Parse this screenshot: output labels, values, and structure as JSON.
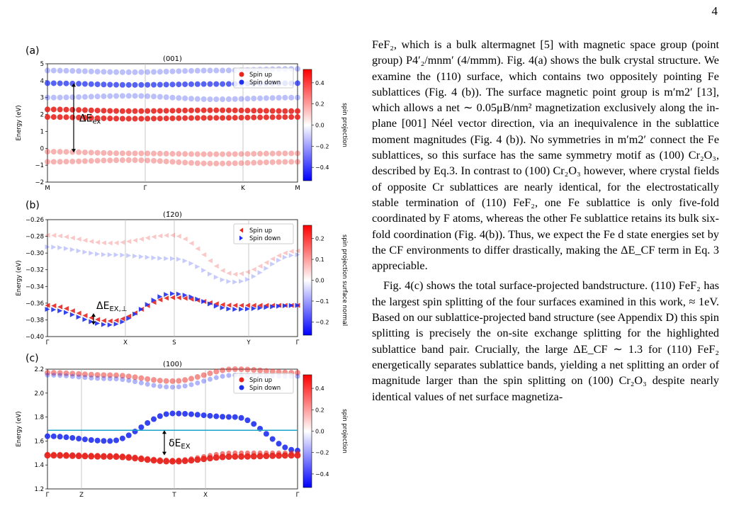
{
  "page_number": "4",
  "figure": {
    "panels": [
      {
        "letter": "(a)",
        "title": "(001)",
        "ylabel": "Energy (eV)",
        "colorbar_label": "spin projection",
        "colorbar_ticks": [
          "0.4",
          "0.2",
          "0.0",
          "−0.2",
          "−0.4"
        ],
        "legend": [
          "Spin up",
          "Spin down"
        ],
        "annotation": "ΔE",
        "annotation_sub": "ex",
        "chart_data": {
          "type": "scatter",
          "x_ticks": [
            "M",
            "Γ",
            "K",
            "M"
          ],
          "y_ticks": [
            "5",
            "4",
            "3",
            "2",
            "1",
            "0",
            "−1",
            "−2"
          ],
          "ylim": [
            -2,
            5
          ],
          "series": [
            {
              "name": "Spin up",
              "color": "#e8251f",
              "bands": [
                [
                  2.3,
                  2.2,
                  2.25,
                  2.2
                ],
                [
                  1.85,
                  1.75,
                  1.8,
                  1.85
                ],
                [
                  -0.2,
                  -0.3,
                  -0.35,
                  -0.3
                ],
                [
                  -0.8,
                  -0.7,
                  -0.9,
                  -0.8
                ]
              ]
            },
            {
              "name": "Spin down",
              "color": "#1f2ff0",
              "bands": [
                [
                  4.6,
                  4.5,
                  4.6,
                  4.7
                ],
                [
                  3.85,
                  3.75,
                  3.8,
                  3.85
                ],
                [
                  3.0,
                  3.1,
                  2.9,
                  3.0
                ]
              ]
            }
          ]
        }
      },
      {
        "letter": "(b)",
        "title": "(1̄20)",
        "ylabel": "Energy (eV)",
        "colorbar_label": "spin projection surface normal",
        "colorbar_ticks": [
          "0.2",
          "0.1",
          "0.0",
          "−0.1",
          "−0.2"
        ],
        "legend": [
          "Spin up",
          "Spin down"
        ],
        "annotation": "ΔE",
        "annotation_sub": "EX,⊥",
        "chart_data": {
          "type": "scatter",
          "x_ticks": [
            "Γ",
            "X",
            "S",
            "Y",
            "Γ"
          ],
          "y_ticks": [
            "−0.26",
            "−0.28",
            "−0.30",
            "−0.32",
            "−0.34",
            "−0.36",
            "−0.38",
            "−0.40"
          ],
          "ylim": [
            -0.4,
            -0.25
          ],
          "series": [
            {
              "name": "Spin up",
              "color": "#e8251f"
            },
            {
              "name": "Spin down",
              "color": "#1f2ff0"
            }
          ]
        }
      },
      {
        "letter": "(c)",
        "title": "(100)",
        "ylabel": "Energy (eV)",
        "colorbar_label": "spin projection",
        "colorbar_ticks": [
          "0.4",
          "0.2",
          "0.0",
          "−0.2",
          "−0.4"
        ],
        "legend": [
          "Spin up",
          "Spin down"
        ],
        "annotation": "δE",
        "annotation_sub": "EX",
        "chart_data": {
          "type": "scatter",
          "x_ticks": [
            "Γ",
            "Z",
            "T",
            "X",
            "Γ"
          ],
          "y_ticks": [
            "2.2",
            "2.0",
            "1.8",
            "1.6",
            "1.4",
            "1.2"
          ],
          "ylim": [
            1.2,
            2.2
          ],
          "fermi_like_line": 1.69,
          "series": [
            {
              "name": "Spin up",
              "color": "#e8251f"
            },
            {
              "name": "Spin down",
              "color": "#1f2ff0"
            }
          ]
        }
      }
    ]
  },
  "text": {
    "p1": "FeF₂, which is a bulk altermagnet [5] with magnetic space group (point group) P4′₂/mnm′ (4/mmm). Fig. 4(a) shows the bulk crystal structure. We examine the (110) surface, which contains two oppositely pointing Fe sublattices (Fig. 4 (b)). The surface magnetic point group is m′m2′ [13], which allows a net ∼ 0.05μB/nm² magnetization exclusively along the in-plane [001] Néel vector direction, via an inequivalence in the sublattice moment magnitudes (Fig. 4 (b)). No symmetries in m′m2′ connect the Fe sublattices, so this surface has the same symmetry motif as (100) Cr₂O₃, described by Eq.3. In contrast to (100) Cr₂O₃ however, where crystal fields of opposite Cr sublattices are nearly identical, for the electrostatically stable termination of (110) FeF₂, one Fe sublattice is only five-fold coordinated by F atoms, whereas the other Fe sublattice retains its bulk six-fold coordination (Fig. 4(b)). Thus, we expect the Fe d state energies set by the CF environments to differ drastically, making the ΔE_CF term in Eq. 3 appreciable.",
    "p2": "Fig. 4(c) shows the total surface-projected bandstructure. (110) FeF₂ has the largest spin splitting of the four surfaces examined in this work, ≈ 1eV. Based on our sublattice-projected band structure (see Appendix D) this spin splitting is precisely the on-site exchange splitting for the highlighted sublattice band pair. Crucially, the large ΔE_CF ∼ 1.3 for (110) FeF₂ energetically separates sublattice bands, yielding a net splitting an order of magnitude larger than the spin splitting on (100) Cr₂O₃ despite nearly identical values of net surface magnetiza-"
  }
}
